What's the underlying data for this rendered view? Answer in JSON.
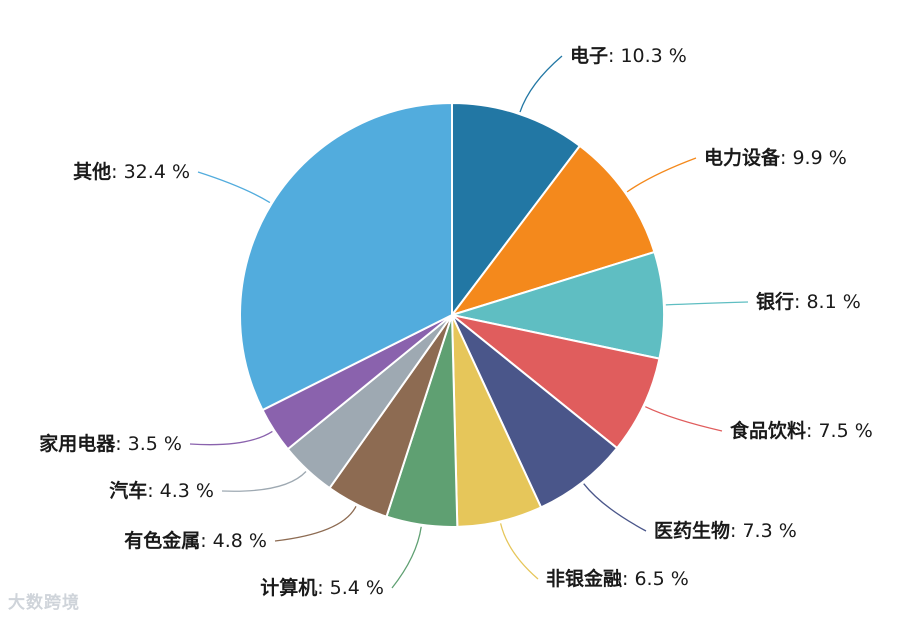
{
  "chart_data": {
    "type": "pie",
    "start": "12 o'clock",
    "direction": "clockwise",
    "unit": "%",
    "slices": [
      {
        "label": "电子",
        "value": 10.3,
        "color": "#2277a4"
      },
      {
        "label": "电力设备",
        "value": 9.9,
        "color": "#f4891c"
      },
      {
        "label": "银行",
        "value": 8.1,
        "color": "#5fbec2"
      },
      {
        "label": "食品饮料",
        "value": 7.5,
        "color": "#e05d5d"
      },
      {
        "label": "医药生物",
        "value": 7.3,
        "color": "#4a568a"
      },
      {
        "label": "非银金融",
        "value": 6.5,
        "color": "#e6c65a"
      },
      {
        "label": "计算机",
        "value": 5.4,
        "color": "#5fa072"
      },
      {
        "label": "有色金属",
        "value": 4.8,
        "color": "#8d6b52"
      },
      {
        "label": "汽车",
        "value": 4.3,
        "color": "#9ea9b2"
      },
      {
        "label": "家用电器",
        "value": 3.5,
        "color": "#8a62ad"
      },
      {
        "label": "其他",
        "value": 32.4,
        "color": "#52acdd"
      }
    ]
  },
  "watermark": "大数跨境"
}
